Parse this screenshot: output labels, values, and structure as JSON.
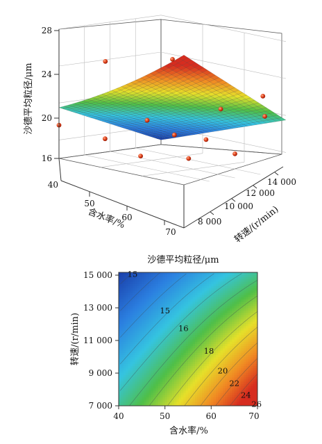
{
  "chart_data": [
    {
      "type": "surface3d",
      "zlabel": "沙德平均粒径/μm",
      "xlabel": "含水率/%",
      "ylabel": "转速/(r/min)",
      "x_ticks": [
        "40",
        "50",
        "60",
        "70"
      ],
      "y_ticks": [
        "8 000",
        "10 000",
        "12 000",
        "14 000"
      ],
      "z_ticks": [
        "16",
        "20",
        "24",
        "28"
      ],
      "xlim": [
        40,
        70
      ],
      "ylim": [
        7000,
        15000
      ],
      "zlim": [
        14,
        28
      ],
      "surface_corners": {
        "x40_y7000": 19.5,
        "x70_y7000": 26.5,
        "x40_y15000": 14.5,
        "x70_y15000": 19.5
      },
      "points": [
        {
          "x": 40,
          "y": 7000,
          "z": 17.6
        },
        {
          "x": 45,
          "y": 9000,
          "z": 24.6
        },
        {
          "x": 55,
          "y": 11000,
          "z": 25.4
        },
        {
          "x": 62,
          "y": 12500,
          "z": 20.4
        },
        {
          "x": 68,
          "y": 14000,
          "z": 19.9
        },
        {
          "x": 52,
          "y": 10000,
          "z": 18.7
        },
        {
          "x": 57,
          "y": 10500,
          "z": 17.5
        },
        {
          "x": 60,
          "y": 12000,
          "z": 17.0
        },
        {
          "x": 48,
          "y": 8000,
          "z": 16.7
        },
        {
          "x": 65,
          "y": 9000,
          "z": 16.0
        },
        {
          "x": 55,
          "y": 8500,
          "z": 15.4
        },
        {
          "x": 70,
          "y": 11000,
          "z": 16.6
        },
        {
          "x": 66,
          "y": 14500,
          "z": 21.8
        }
      ],
      "colormap": [
        "#1a3faa",
        "#2b7fe0",
        "#35c4e0",
        "#4fbf48",
        "#e6e02a",
        "#f08a23",
        "#d62c1f"
      ]
    },
    {
      "type": "contour",
      "title": "沙德平均粒径/μm",
      "xlabel": "含水率/%",
      "ylabel": "转速/(r/min)",
      "x_ticks": [
        "40",
        "50",
        "60",
        "70"
      ],
      "y_ticks": [
        "7 000",
        "9 000",
        "11 000",
        "13 000",
        "15 000"
      ],
      "xlim": [
        40,
        70
      ],
      "ylim": [
        7000,
        15000
      ],
      "contour_levels": [
        {
          "label": "15",
          "x": 43,
          "y": 14900
        },
        {
          "label": "15",
          "x": 50,
          "y": 12700
        },
        {
          "label": "16",
          "x": 54,
          "y": 11650
        },
        {
          "label": "18",
          "x": 59.5,
          "y": 10300
        },
        {
          "label": "20",
          "x": 62.5,
          "y": 9100
        },
        {
          "label": "22",
          "x": 65,
          "y": 8350
        },
        {
          "label": "24",
          "x": 67.5,
          "y": 7650
        },
        {
          "label": "26",
          "x": 69.8,
          "y": 7100
        }
      ]
    }
  ]
}
